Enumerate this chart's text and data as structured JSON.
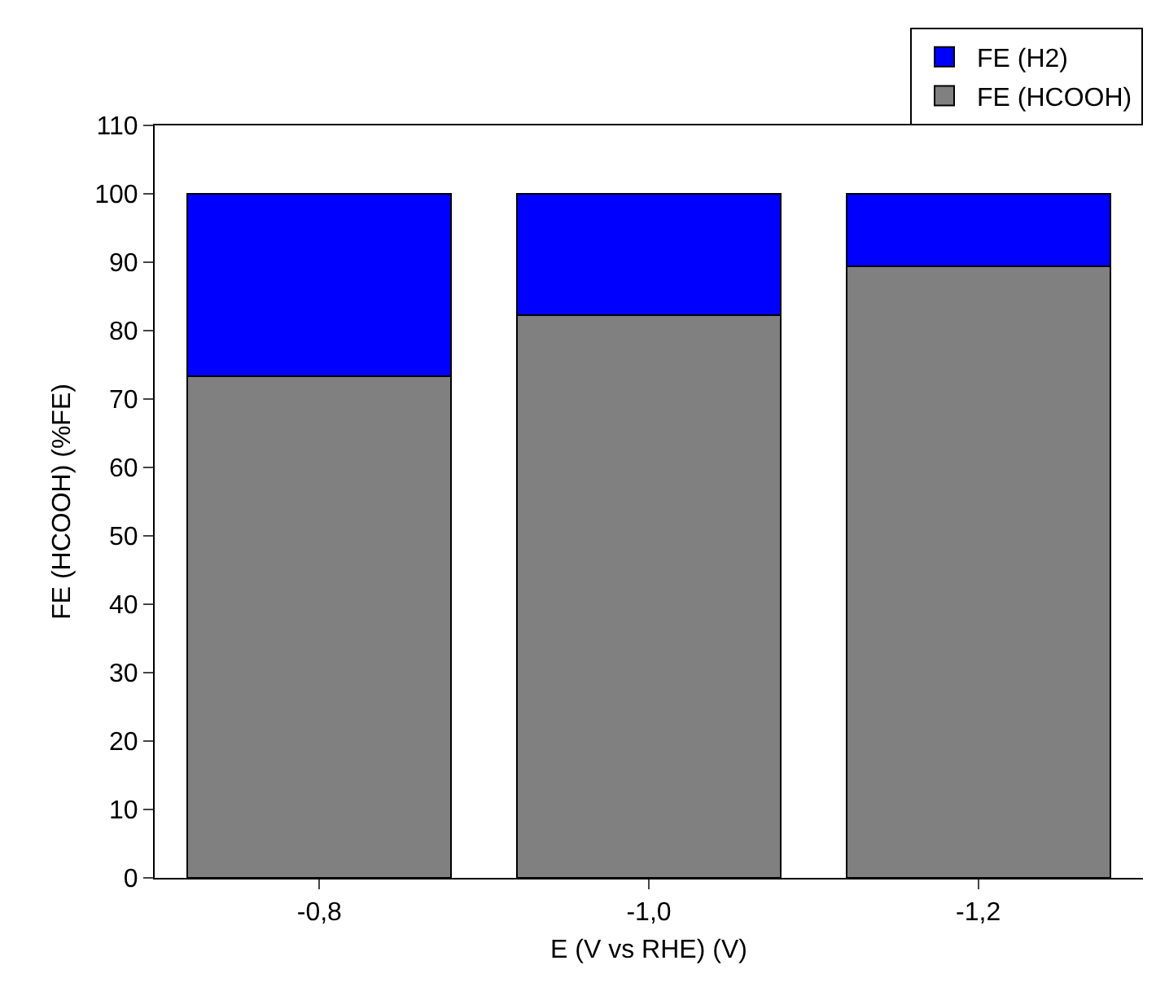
{
  "chart_data": {
    "type": "bar",
    "stacked": true,
    "categories": [
      "-0,8",
      "-1,0",
      "-1,2"
    ],
    "series": [
      {
        "name": "FE (HCOOH)",
        "color": "#808080",
        "values": [
          73.3,
          82.3,
          89.4
        ]
      },
      {
        "name": "FE (H2)",
        "color": "#0000ff",
        "values": [
          26.7,
          17.7,
          10.6
        ]
      }
    ],
    "xlabel": "E (V vs RHE) (V)",
    "ylabel": "FE (HCOOH) (%FE)",
    "ylim": [
      0,
      110
    ],
    "yticks": [
      0,
      10,
      20,
      30,
      40,
      50,
      60,
      70,
      80,
      90,
      100,
      110
    ],
    "grid": false,
    "legend": "top right"
  }
}
